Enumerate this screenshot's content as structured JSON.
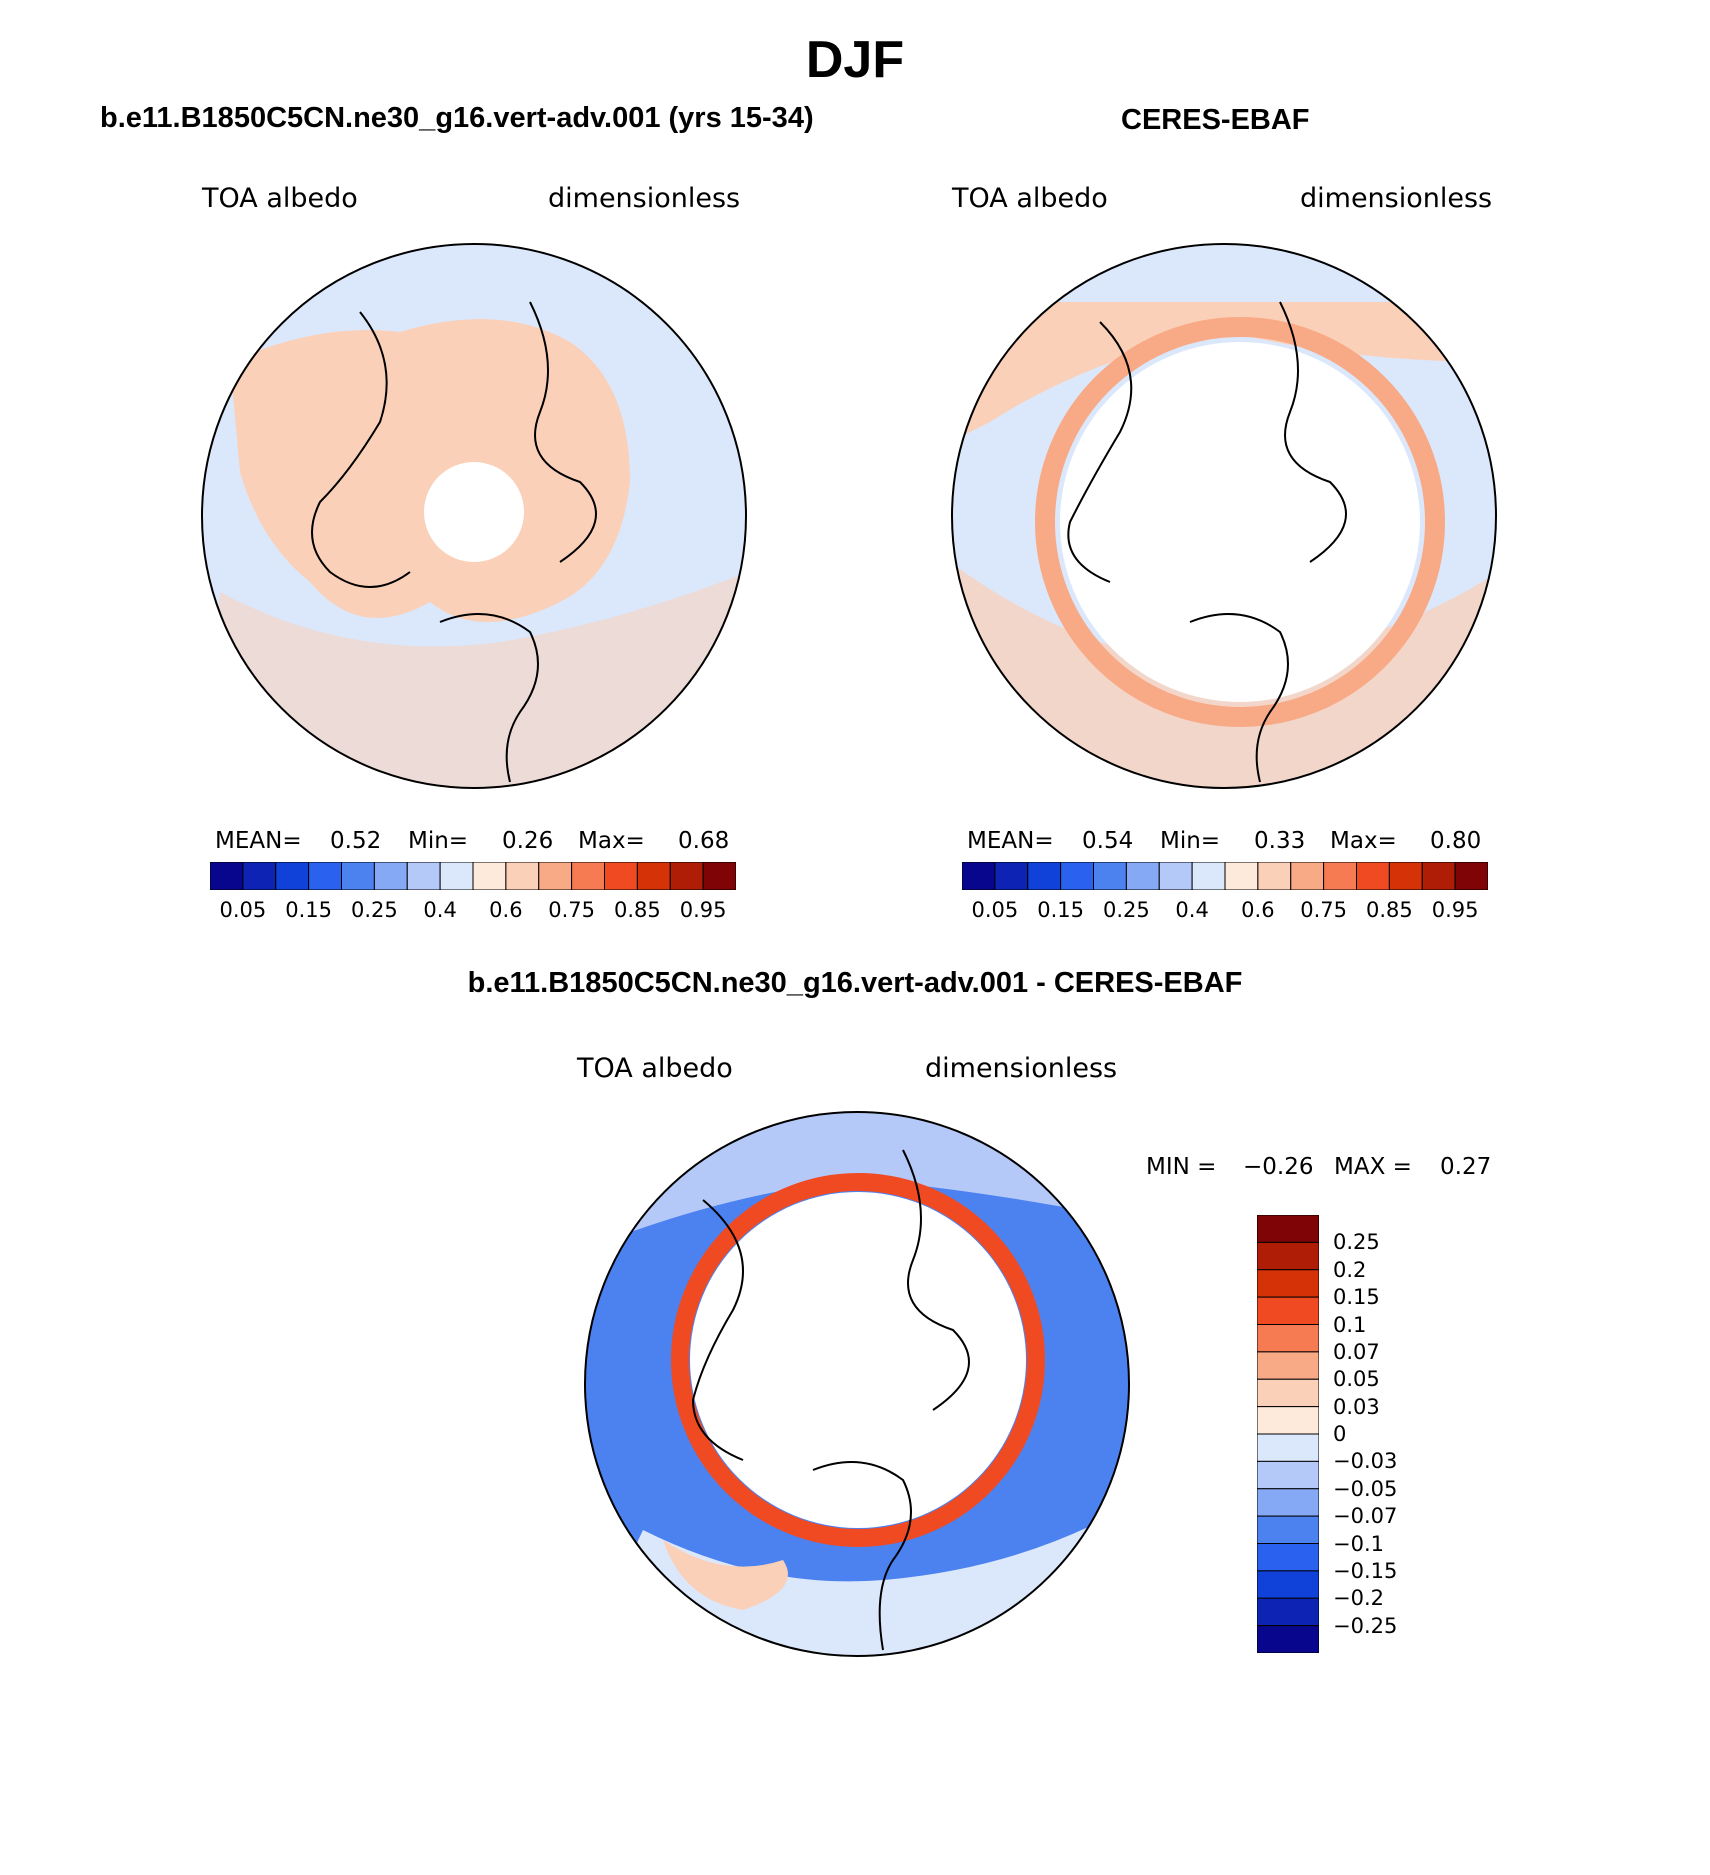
{
  "page": {
    "title": "DJF"
  },
  "panels": {
    "model": {
      "header": "b.e11.B1850C5CN.ne30_g16.vert-adv.001 (yrs 15-34)",
      "left_label": "TOA albedo",
      "right_label": "dimensionless",
      "mean_label": "MEAN=",
      "mean_value": "0.52",
      "min_label": "Min=",
      "min_value": "0.26",
      "max_label": "Max=",
      "max_value": "0.68",
      "fill": "#fbd0b9"
    },
    "obs": {
      "header": "CERES-EBAF",
      "left_label": "TOA albedo",
      "right_label": "dimensionless",
      "mean_label": "MEAN=",
      "mean_value": "0.54",
      "min_label": "Min=",
      "min_value": "0.33",
      "max_label": "Max=",
      "max_value": "0.80",
      "fill": "#fbd0b9"
    },
    "diff": {
      "header": "b.e11.B1850C5CN.ne30_g16.vert-adv.001 - CERES-EBAF",
      "left_label": "TOA albedo",
      "right_label": "dimensionless",
      "min_label": "MIN =",
      "min_value": "−0.26",
      "max_label": "MAX =",
      "max_value": "0.27"
    }
  },
  "colorbar_h": {
    "colors": [
      "#08068c",
      "#0c23b4",
      "#1041d8",
      "#2a61ee",
      "#4c82f0",
      "#85a9f4",
      "#b4c9f8",
      "#dbe8fb",
      "#fdeadb",
      "#fbd0b9",
      "#f8a985",
      "#f67b52",
      "#f04a22",
      "#d63208",
      "#af1d06",
      "#7e0405"
    ],
    "labels": [
      "0.05",
      "0.15",
      "0.25",
      "0.4",
      "0.6",
      "0.75",
      "0.85",
      "0.95"
    ]
  },
  "colorbar_v": {
    "colors": [
      "#7e0405",
      "#af1d06",
      "#d63208",
      "#f04a22",
      "#f67b52",
      "#f8a985",
      "#fbd0b9",
      "#fdeadb",
      "#dbe8fb",
      "#b4c9f8",
      "#85a9f4",
      "#4c82f0",
      "#2a61ee",
      "#1041d8",
      "#0c23b4",
      "#08068c"
    ],
    "labels": [
      "0.25",
      "0.2",
      "0.15",
      "0.1",
      "0.07",
      "0.05",
      "0.03",
      "0",
      "−0.03",
      "−0.05",
      "−0.07",
      "−0.1",
      "−0.15",
      "−0.2",
      "−0.25"
    ]
  },
  "colors": {
    "land_line": "#000000",
    "ocean_light_blue": "#dbe8fb",
    "diff_blue": "#2a61ee",
    "diff_ring": "#f04a22"
  }
}
